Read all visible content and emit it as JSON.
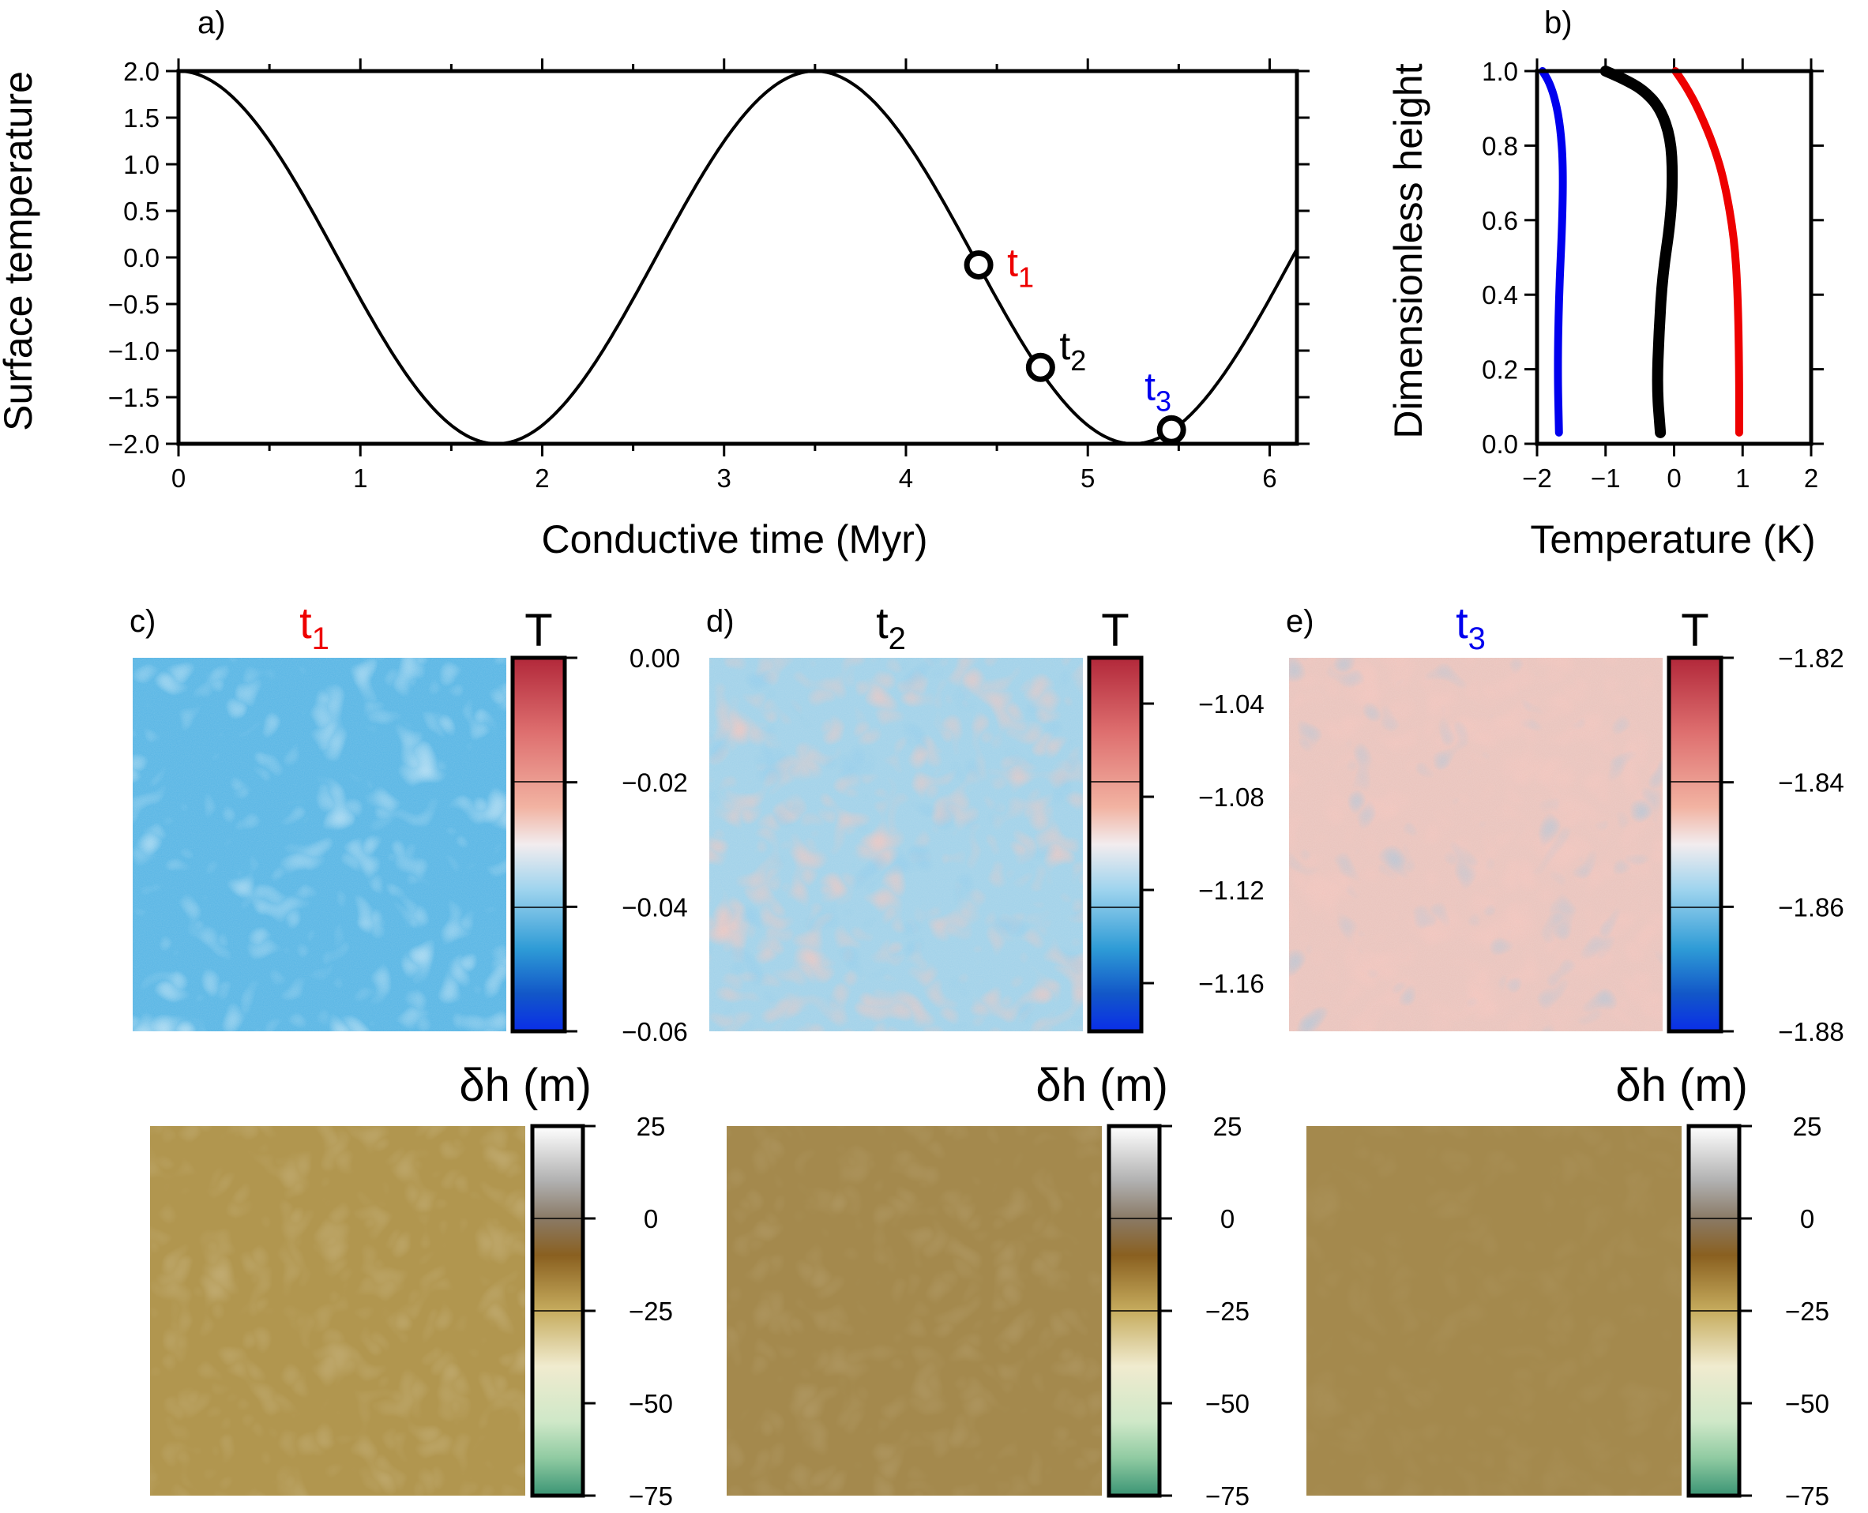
{
  "colors": {
    "red": "#ee0000",
    "black": "#000000",
    "blue": "#0000ee",
    "t_map_base": "#5cb8e6",
    "h_map_base": "#a58a4e"
  },
  "panel_a": {
    "label": "a)",
    "xlabel": "Conductive time (Myr)",
    "ylabel": "Surface temperature",
    "xticks": [
      "0",
      "1",
      "2",
      "3",
      "4",
      "5",
      "6"
    ],
    "yticks": [
      "2.0",
      "1.5",
      "1.0",
      "0.5",
      "0.0",
      "−0.5",
      "−1.0",
      "−1.5",
      "−2.0"
    ],
    "markers": [
      {
        "base": "t",
        "sub": "1",
        "color": "red"
      },
      {
        "base": "t",
        "sub": "2",
        "color": "black"
      },
      {
        "base": "t",
        "sub": "3",
        "color": "blue"
      }
    ]
  },
  "panel_b": {
    "label": "b)",
    "xlabel": "Temperature (K)",
    "ylabel": "Dimensionless height",
    "xticks": [
      "−2",
      "−1",
      "0",
      "1",
      "2"
    ],
    "yticks": [
      "1.0",
      "0.8",
      "0.6",
      "0.4",
      "0.2",
      "0.0"
    ]
  },
  "maps": [
    {
      "label": "c)",
      "title_base": "t",
      "title_sub": "1",
      "title_color": "red",
      "t_colorbar_title": "T",
      "t_ticks": [
        "0.00",
        "−0.02",
        "−0.04",
        "−0.06"
      ],
      "h_colorbar_title": "δh (m)",
      "h_ticks": [
        "25",
        "0",
        "−25",
        "−50",
        "−75"
      ]
    },
    {
      "label": "d)",
      "title_base": "t",
      "title_sub": "2",
      "title_color": "black",
      "t_colorbar_title": "T",
      "t_ticks": [
        "−1.04",
        "−1.08",
        "−1.12",
        "−1.16"
      ],
      "h_colorbar_title": "δh (m)",
      "h_ticks": [
        "25",
        "0",
        "−25",
        "−50",
        "−75"
      ]
    },
    {
      "label": "e)",
      "title_base": "t",
      "title_sub": "3",
      "title_color": "blue",
      "t_colorbar_title": "T",
      "t_ticks": [
        "−1.82",
        "−1.84",
        "−1.86",
        "−1.88"
      ],
      "h_colorbar_title": "δh (m)",
      "h_ticks": [
        "25",
        "0",
        "−25",
        "−50",
        "−75"
      ]
    }
  ],
  "chart_data": [
    {
      "type": "line",
      "title": "",
      "xlabel": "Conductive time (Myr)",
      "ylabel": "Surface temperature",
      "xlim": [
        0,
        6.15
      ],
      "ylim": [
        -2.0,
        2.0
      ],
      "grid": false,
      "series": [
        {
          "x": [
            0,
            0.5,
            1.0,
            1.5,
            1.75,
            2.0,
            2.5,
            3.0,
            3.5,
            4.0,
            4.5,
            5.0,
            5.25,
            5.5,
            6.0,
            6.15
          ],
          "y": [
            2.0,
            1.27,
            -0.42,
            -1.81,
            -2.0,
            -1.8,
            -0.42,
            1.25,
            2.0,
            1.27,
            -0.42,
            -1.81,
            -2.0,
            -1.8,
            -0.42,
            0.0
          ]
        }
      ],
      "points": [
        {
          "label": "t1",
          "x": 4.4,
          "y": -0.08
        },
        {
          "label": "t2",
          "x": 4.74,
          "y": -1.18
        },
        {
          "label": "t3",
          "x": 5.46,
          "y": -1.85
        }
      ]
    },
    {
      "type": "line",
      "title": "",
      "xlabel": "Temperature (K)",
      "ylabel": "Dimensionless height",
      "xlim": [
        -2,
        2
      ],
      "ylim": [
        0.0,
        1.0
      ],
      "grid": false,
      "series": [
        {
          "color": "blue",
          "y": [
            0.03,
            0.2,
            0.4,
            0.6,
            0.75,
            0.85,
            0.92,
            0.97,
            1.0
          ],
          "x": [
            -1.68,
            -1.7,
            -1.68,
            -1.63,
            -1.62,
            -1.66,
            -1.73,
            -1.82,
            -1.92
          ]
        },
        {
          "color": "black",
          "y": [
            0.03,
            0.15,
            0.3,
            0.45,
            0.6,
            0.72,
            0.82,
            0.9,
            0.95,
            0.98,
            1.0
          ],
          "x": [
            -0.2,
            -0.25,
            -0.22,
            -0.17,
            -0.05,
            -0.02,
            -0.05,
            -0.2,
            -0.45,
            -0.75,
            -1.0
          ]
        },
        {
          "color": "red",
          "y": [
            0.03,
            0.2,
            0.4,
            0.55,
            0.7,
            0.8,
            0.9,
            0.96,
            1.0
          ],
          "x": [
            0.95,
            0.95,
            0.93,
            0.88,
            0.74,
            0.58,
            0.35,
            0.17,
            0.02
          ]
        }
      ]
    }
  ]
}
